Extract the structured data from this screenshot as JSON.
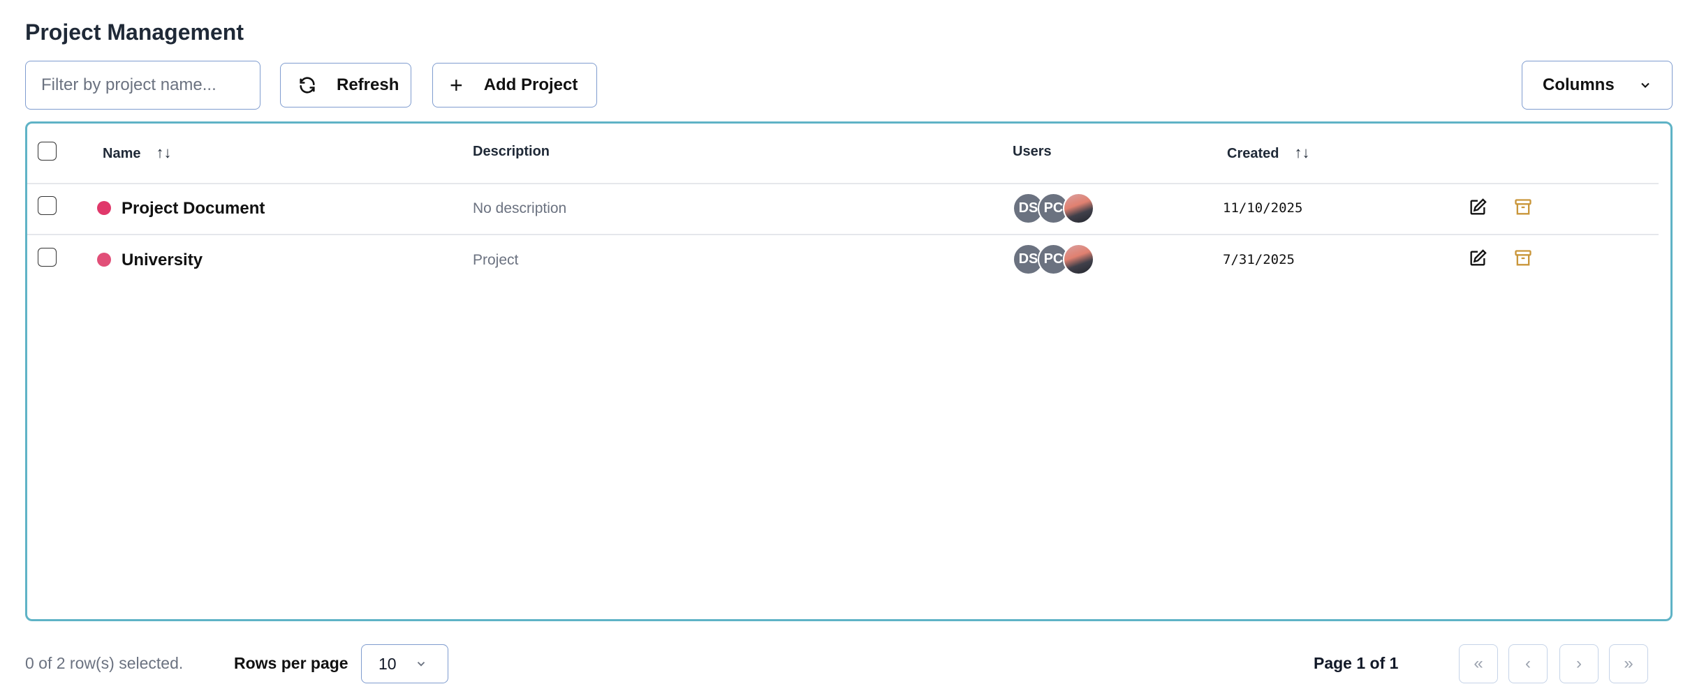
{
  "header": {
    "title": "Project Management"
  },
  "toolbar": {
    "filter_placeholder": "Filter by project name...",
    "refresh_label": "Refresh",
    "add_label": "Add Project",
    "columns_label": "Columns"
  },
  "table": {
    "columns": {
      "name": "Name",
      "description": "Description",
      "users": "Users",
      "created": "Created"
    },
    "rows": [
      {
        "name": "Project Document",
        "color": "#e0386a",
        "description": "No description",
        "users": [
          "DS",
          "PC"
        ],
        "created": "11/10/2025"
      },
      {
        "name": "University",
        "color": "#e14f78",
        "description": "Project",
        "users": [
          "DS",
          "PC"
        ],
        "created": "7/31/2025"
      }
    ]
  },
  "footer": {
    "selection": "0 of 2 row(s) selected.",
    "rows_per_page_label": "Rows per page",
    "rows_per_page": "10",
    "page_info": "Page 1 of 1"
  },
  "colors": {
    "accent_border": "#5fb3c6",
    "archive_icon": "#c9963a"
  }
}
